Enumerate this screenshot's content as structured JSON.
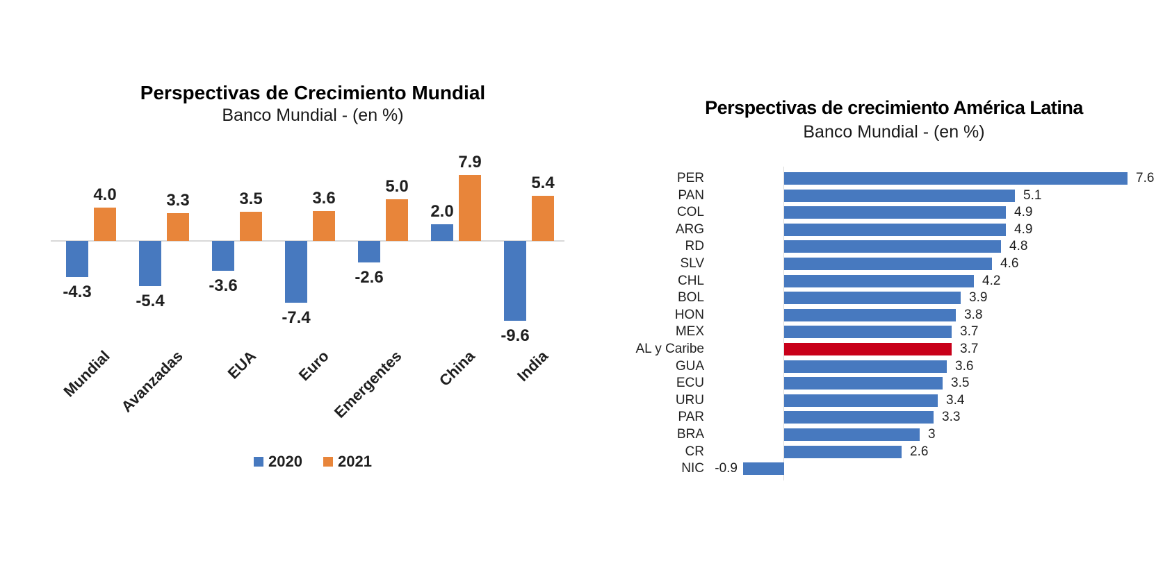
{
  "chart_data": [
    {
      "type": "bar",
      "orientation": "vertical",
      "title": "Perspectivas de Crecimiento Mundial",
      "subtitle": "Banco Mundial - (en %)",
      "categories": [
        "Mundial",
        "Avanzadas",
        "EUA",
        "Euro",
        "Emergentes",
        "China",
        "India"
      ],
      "series": [
        {
          "name": "2020",
          "color": "#4779BF",
          "values": [
            -4.3,
            -5.4,
            -3.6,
            -7.4,
            -2.6,
            2.0,
            -9.6
          ],
          "labels": [
            "-4.3",
            "-5.4",
            "-3.6",
            "-7.4",
            "-2.6",
            "2.0",
            "-9.6"
          ]
        },
        {
          "name": "2021",
          "color": "#E8853A",
          "values": [
            4.0,
            3.3,
            3.5,
            3.6,
            5.0,
            7.9,
            5.4
          ],
          "labels": [
            "4.0",
            "3.3",
            "3.5",
            "3.6",
            "5.0",
            "7.9",
            "5.4"
          ]
        }
      ],
      "legend_position": "bottom",
      "grid": false,
      "ylim": [
        -10.5,
        9
      ]
    },
    {
      "type": "bar",
      "orientation": "horizontal",
      "title": "Perspectivas de crecimiento América Latina",
      "subtitle": "Banco Mundial - (en %)",
      "categories": [
        "PER",
        "PAN",
        "COL",
        "ARG",
        "RD",
        "SLV",
        "CHL",
        "BOL",
        "HON",
        "MEX",
        "AL y Caribe",
        "GUA",
        "ECU",
        "URU",
        "PAR",
        "BRA",
        "CR",
        "NIC"
      ],
      "values": [
        7.6,
        5.1,
        4.9,
        4.9,
        4.8,
        4.6,
        4.2,
        3.9,
        3.8,
        3.7,
        3.7,
        3.6,
        3.5,
        3.4,
        3.3,
        3,
        2.6,
        -0.9
      ],
      "labels": [
        "7.6",
        "5.1",
        "4.9",
        "4.9",
        "4.8",
        "4.6",
        "4.2",
        "3.9",
        "3.8",
        "3.7",
        "3.7",
        "3.6",
        "3.5",
        "3.4",
        "3.3",
        "3",
        "2.6",
        "-0.9"
      ],
      "bar_color": "#4779BF",
      "highlight_category": "AL y Caribe",
      "highlight_color": "#C8001A",
      "xlim": [
        -1,
        8
      ],
      "grid": false
    }
  ]
}
